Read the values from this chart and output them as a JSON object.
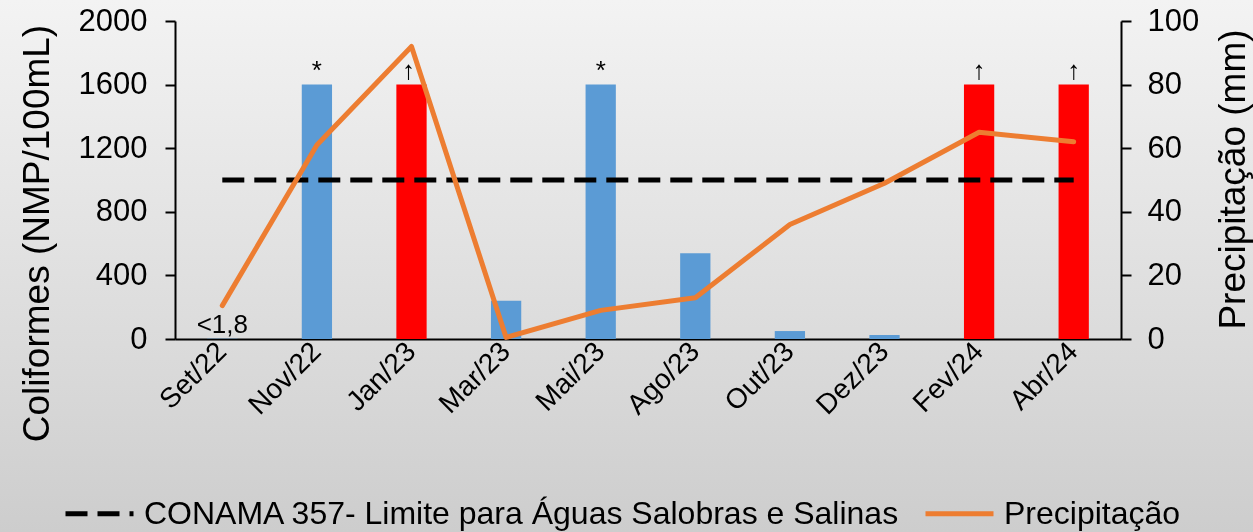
{
  "chart_data": {
    "type": "bar",
    "categories": [
      "Set/22",
      "Nov/22",
      "Jan/23",
      "Mar/23",
      "Mai/23",
      "Ago/23",
      "Out/23",
      "Dez/23",
      "Fev/24",
      "Abr/24"
    ],
    "ylabel": "Coliformes (NMP/100mL)",
    "y2label": "Precipitação (mm)",
    "series": [
      {
        "colors": [
          "#5b9bd5",
          "#5b9bd5",
          "#ff0000",
          "#5b9bd5",
          "#5b9bd5",
          "#5b9bd5",
          "#5b9bd5",
          "#5b9bd5",
          "#ff0000",
          "#ff0000"
        ],
        "values": [
          1.8,
          1600,
          1600,
          240,
          1600,
          540,
          50,
          25,
          1600,
          1600
        ],
        "value_labels": [
          "<1,8",
          "*",
          "↑",
          null,
          "*",
          null,
          null,
          null,
          "↑",
          "↑"
        ]
      },
      {
        "name": "Precipitação",
        "type": "line",
        "axis": "y2",
        "color": "#ed7d31",
        "values": [
          10.5,
          61,
          92,
          0.5,
          9,
          13,
          36,
          49,
          65,
          62
        ]
      }
    ],
    "ylim": [
      0,
      2000
    ],
    "yticks": [
      0,
      400,
      800,
      1200,
      1600,
      2000
    ],
    "y2lim": [
      0,
      100
    ],
    "y2ticks": [
      0,
      20,
      40,
      60,
      80,
      100
    ],
    "ref_lines": [
      {
        "axis": "y",
        "value": 1000,
        "label": "CONAMA 357- Limite para Águas Salobras e Salinas",
        "color": "#000000",
        "line_style": "dashed"
      }
    ],
    "legend": "bottom"
  }
}
